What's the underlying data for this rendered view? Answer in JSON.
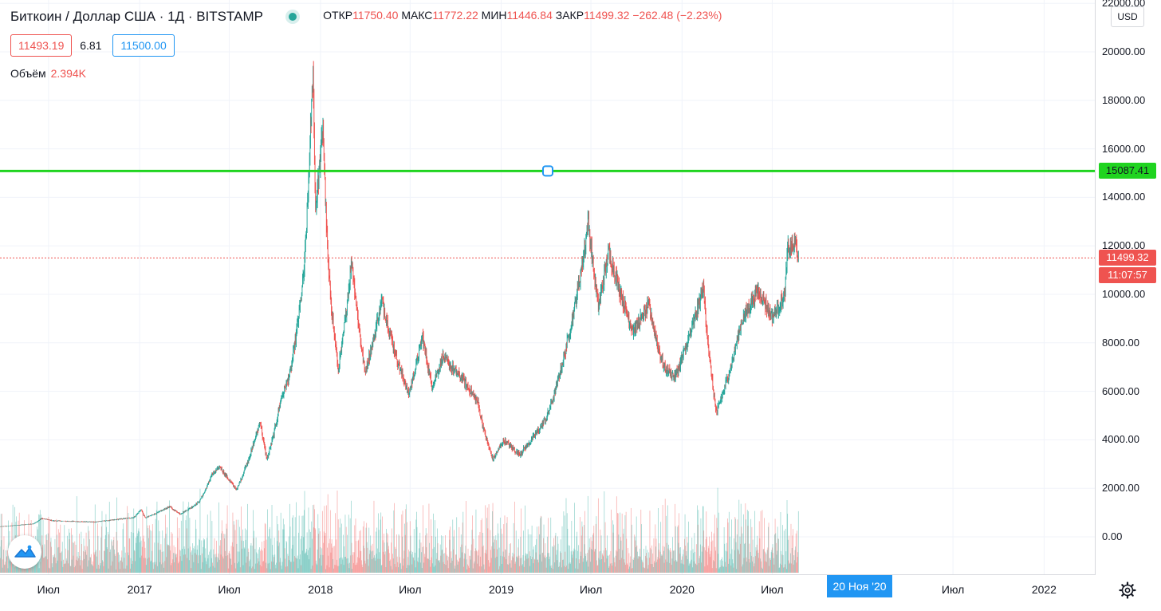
{
  "legend": {
    "title": "Биткоин / Доллар США · 1Д · BITSTAMP",
    "ohlc": {
      "open_label": "ОТКР",
      "open": "11750.40",
      "high_label": "МАКС",
      "high": "11772.22",
      "low_label": "МИН",
      "low": "11446.84",
      "close_label": "ЗАКР",
      "close": "11499.32",
      "change": "−262.48 (−2.23%)"
    },
    "sell_price": "11493.19",
    "spread": "6.81",
    "buy_price": "11500.00",
    "volume_label": "Объём",
    "volume_value": "2.394K"
  },
  "currency_button": "USD",
  "price_axis": [
    "22000.00",
    "20000.00",
    "18000.00",
    "16000.00",
    "14000.00",
    "12000.00",
    "10000.00",
    "8000.00",
    "6000.00",
    "4000.00",
    "2000.00",
    "0.00"
  ],
  "time_axis": [
    "Июл",
    "2017",
    "Июл",
    "2018",
    "Июл",
    "2019",
    "Июл",
    "2020",
    "Июл",
    "Июл",
    "2022"
  ],
  "horizontal_line": {
    "value": "15087.41",
    "color": "#20d420"
  },
  "last_price_label": "11499.32",
  "countdown_label": "11:07:57",
  "cursor_date_label": "20 Ноя '20",
  "colors": {
    "up": "#26a69a",
    "down": "#ef5350",
    "hline": "#20d420",
    "accent": "#2196f3"
  },
  "icons": {
    "settings": "gear-icon",
    "logo": "tradingview-logo-icon",
    "status": "market-open-dot-icon"
  },
  "chart_data": {
    "type": "candlestick",
    "symbol": "BTCUSD",
    "exchange": "BITSTAMP",
    "interval": "1D",
    "ylim": [
      -1500,
      22000
    ],
    "xlim": [
      "2016-03-25",
      "2022-04-15"
    ],
    "hline": 15087.41,
    "last_close": 11499.32,
    "grid": true,
    "anchors": [
      [
        "2016-03-25",
        415
      ],
      [
        "2016-06-01",
        540
      ],
      [
        "2016-06-17",
        760
      ],
      [
        "2016-07-10",
        660
      ],
      [
        "2016-10-01",
        610
      ],
      [
        "2016-12-20",
        800
      ],
      [
        "2017-01-04",
        1130
      ],
      [
        "2017-01-12",
        780
      ],
      [
        "2017-03-02",
        1250
      ],
      [
        "2017-03-24",
        940
      ],
      [
        "2017-05-01",
        1450
      ],
      [
        "2017-05-25",
        2500
      ],
      [
        "2017-06-12",
        2900
      ],
      [
        "2017-07-16",
        1950
      ],
      [
        "2017-08-01",
        2800
      ],
      [
        "2017-09-01",
        4800
      ],
      [
        "2017-09-15",
        3200
      ],
      [
        "2017-10-12",
        5600
      ],
      [
        "2017-11-01",
        6800
      ],
      [
        "2017-11-29",
        11000
      ],
      [
        "2017-12-17",
        19500
      ],
      [
        "2017-12-22",
        13500
      ],
      [
        "2018-01-06",
        17000
      ],
      [
        "2018-01-17",
        11000
      ],
      [
        "2018-02-06",
        6900
      ],
      [
        "2018-03-05",
        11500
      ],
      [
        "2018-04-01",
        6800
      ],
      [
        "2018-05-05",
        9800
      ],
      [
        "2018-06-28",
        5900
      ],
      [
        "2018-07-26",
        8300
      ],
      [
        "2018-08-14",
        6200
      ],
      [
        "2018-09-05",
        7400
      ],
      [
        "2018-10-15",
        6500
      ],
      [
        "2018-11-14",
        5600
      ],
      [
        "2018-12-15",
        3200
      ],
      [
        "2019-01-06",
        4000
      ],
      [
        "2019-02-07",
        3400
      ],
      [
        "2019-04-02",
        4900
      ],
      [
        "2019-05-14",
        8000
      ],
      [
        "2019-06-26",
        13000
      ],
      [
        "2019-07-16",
        9500
      ],
      [
        "2019-08-06",
        11800
      ],
      [
        "2019-09-24",
        8500
      ],
      [
        "2019-10-26",
        9500
      ],
      [
        "2019-11-25",
        7000
      ],
      [
        "2019-12-18",
        6600
      ],
      [
        "2020-02-13",
        10300
      ],
      [
        "2020-03-12",
        4900
      ],
      [
        "2020-03-13",
        5300
      ],
      [
        "2020-04-29",
        8800
      ],
      [
        "2020-06-01",
        10200
      ],
      [
        "2020-07-01",
        9100
      ],
      [
        "2020-07-26",
        9900
      ],
      [
        "2020-08-01",
        11800
      ],
      [
        "2020-08-17",
        12100
      ],
      [
        "2020-08-23",
        11499
      ]
    ]
  }
}
